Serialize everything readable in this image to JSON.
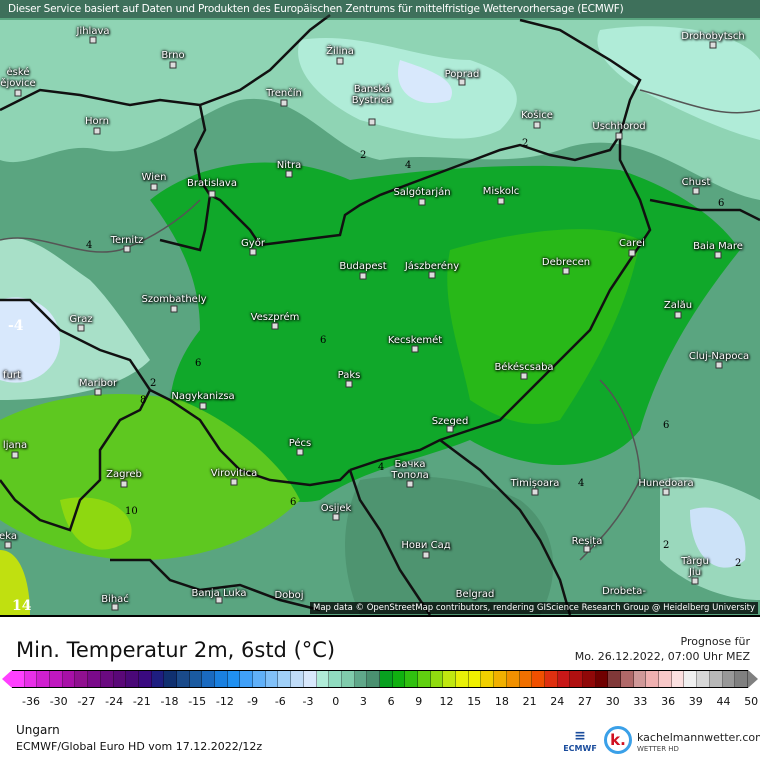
{
  "header": {
    "disclaimer": "Dieser Service basiert auf Daten und Produkten des Europäischen Zentrums für mittelfristige Wettervorhersage  (ECMWF)"
  },
  "map": {
    "attribution": "Map data © OpenStreetMap contributors, rendering GIScience Research Group @ Heidelberg University",
    "cities": [
      {
        "name": "Jihlava"
      },
      {
        "name": "Brno"
      },
      {
        "name": "ėské\nějovice"
      },
      {
        "name": "Žilina"
      },
      {
        "name": "Poprad"
      },
      {
        "name": "Trenčín"
      },
      {
        "name": "Banská\nBystrica"
      },
      {
        "name": "Košice"
      },
      {
        "name": "Uschhorod"
      },
      {
        "name": "Drohobytsch"
      },
      {
        "name": "Horn"
      },
      {
        "name": "Nitra"
      },
      {
        "name": "Wien"
      },
      {
        "name": "Bratislava"
      },
      {
        "name": "Salgótarján"
      },
      {
        "name": "Miskolc"
      },
      {
        "name": "Chust"
      },
      {
        "name": "Ternitz"
      },
      {
        "name": "Győr"
      },
      {
        "name": "Budapest"
      },
      {
        "name": "Jászberény"
      },
      {
        "name": "Debrecen"
      },
      {
        "name": "Carei"
      },
      {
        "name": "Baia Mare"
      },
      {
        "name": "Szombathely"
      },
      {
        "name": "Zalău"
      },
      {
        "name": "Graz"
      },
      {
        "name": "Veszprém"
      },
      {
        "name": "Kecskemét"
      },
      {
        "name": "Cluj-Napoca"
      },
      {
        "name": "Paks"
      },
      {
        "name": "Békéscsaba"
      },
      {
        "name": "Maribor"
      },
      {
        "name": "Nagykanizsa"
      },
      {
        "name": "Szeged"
      },
      {
        "name": "Pécs"
      },
      {
        "name": "ljana"
      },
      {
        "name": "Zagreb"
      },
      {
        "name": "Virovitica"
      },
      {
        "name": "Бачка\nТопола"
      },
      {
        "name": "Timișoara"
      },
      {
        "name": "Hunedoara"
      },
      {
        "name": "Osijek"
      },
      {
        "name": "eka"
      },
      {
        "name": "Нови Сад"
      },
      {
        "name": "Reșița"
      },
      {
        "name": "Târgu\nJiu"
      },
      {
        "name": "Bihać"
      },
      {
        "name": "Banja Luka"
      },
      {
        "name": "Doboj"
      },
      {
        "name": "Belgrad"
      },
      {
        "name": "Drobeta-"
      },
      {
        "name": "furt"
      }
    ],
    "contour_labels": [
      "2",
      "4",
      "2",
      "6",
      "6",
      "6",
      "2",
      "8",
      "6",
      "10",
      "6",
      "4",
      "4",
      "4",
      "2",
      "2",
      "-4",
      "14"
    ]
  },
  "legend": {
    "title": "Min. Temperatur 2m, 6std (°C)",
    "forecast_label": "Prognose für",
    "forecast_time": "Mo. 26.12.2022, 07:00 Uhr MEZ",
    "ticks": [
      "-36",
      "-30",
      "-27",
      "-24",
      "-21",
      "-18",
      "-15",
      "-12",
      "-9",
      "-6",
      "-3",
      "0",
      "3",
      "6",
      "9",
      "12",
      "15",
      "18",
      "21",
      "24",
      "27",
      "30",
      "33",
      "36",
      "39",
      "44",
      "50"
    ],
    "colors": [
      "#ff40ff",
      "#e830e8",
      "#d020d0",
      "#c018c0",
      "#a810a8",
      "#901090",
      "#7a0a8a",
      "#6a0a80",
      "#5a0878",
      "#4a0878",
      "#3a0a80",
      "#1e1e80",
      "#103070",
      "#1a4a8a",
      "#1a5aa0",
      "#1a6ac0",
      "#1a80e0",
      "#2090f0",
      "#40a0f8",
      "#60b0f8",
      "#80c0f8",
      "#a0d0f8",
      "#c0dcf8",
      "#d8e8fc",
      "#b0ecd8",
      "#90dcc0",
      "#80ccac",
      "#60a88a",
      "#4a9070",
      "#08a020",
      "#10b010",
      "#30c010",
      "#60d010",
      "#90dc10",
      "#c0e810",
      "#e8f008",
      "#f0f000",
      "#f0d000",
      "#f0b000",
      "#f09000",
      "#f07000",
      "#f05000",
      "#e03010",
      "#c81818",
      "#b01010",
      "#900808",
      "#700000",
      "#803838",
      "#b06868",
      "#d09898",
      "#f0b0b0",
      "#f8c8c8",
      "#fce0e0",
      "#f0f0f0",
      "#d8d8d8",
      "#b8b8b8",
      "#989898",
      "#808080"
    ]
  },
  "footer": {
    "region": "Ungarn",
    "model": "ECMWF/Global Euro HD vom  17.12.2022/12z",
    "ecmwf_logo": "ECMWF",
    "brand": "kachelmannwetter.com",
    "brand_sub": "WETTER HD",
    "brand_logo": "k."
  }
}
